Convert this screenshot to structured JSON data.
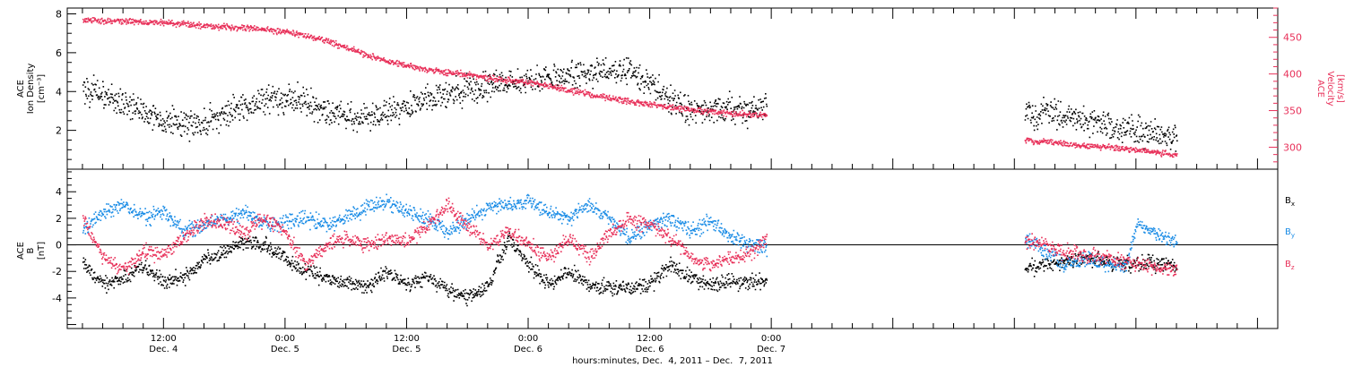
{
  "chart_data": [
    {
      "type": "scatter",
      "panel": "top",
      "ylabel_left": [
        "ACE",
        "Ion Density",
        "[cm⁻³]"
      ],
      "ylabel_right": [
        "ACE",
        "Velocity",
        "[km/s]"
      ],
      "ylim_left": [
        0,
        8.3
      ],
      "yticks_left": [
        2,
        4,
        6,
        8
      ],
      "ylim_right": [
        270,
        490
      ],
      "yticks_right": [
        300,
        350,
        400,
        450
      ],
      "grid": false,
      "series": [
        {
          "color": "#000000",
          "axis": "left",
          "segments": [
            {
              "x": [
                -8,
                -5,
                -3,
                0,
                2,
                4,
                6,
                8,
                10,
                12,
                14,
                16,
                18,
                20,
                22,
                24,
                26,
                28,
                30,
                32,
                34,
                36,
                38,
                40,
                42,
                44,
                46,
                48,
                50,
                52,
                54,
                56,
                58,
                59.5
              ],
              "y": [
                4.2,
                3.6,
                3.2,
                2.5,
                2.3,
                2.4,
                2.8,
                3.3,
                3.6,
                3.7,
                3.5,
                3.0,
                2.8,
                2.6,
                2.9,
                3.3,
                3.6,
                3.9,
                4.1,
                4.3,
                4.5,
                4.6,
                4.7,
                4.8,
                4.9,
                5.1,
                5.0,
                4.4,
                3.6,
                3.1,
                3.0,
                3.1,
                3.0,
                3.2
              ]
            },
            {
              "x": [
                85,
                88,
                90,
                92,
                94,
                96,
                98,
                100
              ],
              "y": [
                2.8,
                2.9,
                2.6,
                2.4,
                2.2,
                2.0,
                1.9,
                1.7
              ]
            }
          ]
        },
        {
          "color": "#e8315a",
          "axis": "right",
          "segments": [
            {
              "x": [
                -8,
                -4,
                0,
                4,
                8,
                12,
                14,
                16,
                18,
                20,
                22,
                24,
                26,
                28,
                30,
                32,
                34,
                36,
                38,
                40,
                42,
                44,
                46,
                48,
                50,
                52,
                54,
                56,
                58,
                59.5
              ],
              "y": [
                473,
                472,
                470,
                466,
                463,
                458,
                452,
                445,
                436,
                426,
                417,
                411,
                406,
                402,
                399,
                394,
                391,
                388,
                384,
                378,
                372,
                367,
                362,
                358,
                355,
                351,
                348,
                346,
                344,
                343
              ]
            },
            {
              "x": [
                85,
                88,
                90,
                92,
                94,
                96,
                98,
                100
              ],
              "y": [
                310,
                306,
                303,
                301,
                299,
                296,
                293,
                289
              ]
            }
          ]
        }
      ]
    },
    {
      "type": "scatter",
      "panel": "bottom",
      "ylabel": [
        "ACE",
        "B",
        "[nT]"
      ],
      "ylim": [
        -6.3,
        5.7
      ],
      "yticks": [
        -4,
        -2,
        0,
        2,
        4
      ],
      "zero_line": true,
      "grid": false,
      "legend": [
        {
          "label": "B",
          "sub": "x",
          "color": "#000000"
        },
        {
          "label": "B",
          "sub": "y",
          "color": "#1a8ce6"
        },
        {
          "label": "B",
          "sub": "z",
          "color": "#e8315a"
        }
      ],
      "series": [
        {
          "color": "#000000",
          "segments": [
            {
              "x": [
                -8,
                -6,
                -4,
                -2,
                0,
                2,
                4,
                6,
                8,
                10,
                12,
                14,
                16,
                18,
                20,
                22,
                24,
                26,
                28,
                30,
                32,
                34,
                36,
                38,
                40,
                42,
                44,
                46,
                48,
                50,
                52,
                54,
                56,
                58,
                59.5
              ],
              "y": [
                -1.5,
                -3.0,
                -2.5,
                -1.5,
                -2.8,
                -2.5,
                -1.2,
                -0.5,
                0.3,
                0.0,
                -1.0,
                -2.0,
                -2.5,
                -2.8,
                -3.2,
                -2.0,
                -3.0,
                -2.5,
                -3.5,
                -4.0,
                -3.0,
                0.5,
                -1.5,
                -3.0,
                -2.0,
                -3.0,
                -3.2,
                -3.3,
                -3.0,
                -1.5,
                -2.5,
                -3.0,
                -2.8,
                -2.7,
                -2.9
              ]
            },
            {
              "x": [
                85,
                87,
                89,
                91,
                93,
                95,
                97,
                100
              ],
              "y": [
                -1.8,
                -1.5,
                -1.2,
                -1.0,
                -1.3,
                -1.5,
                -1.4,
                -1.6
              ]
            }
          ]
        },
        {
          "color": "#1a8ce6",
          "segments": [
            {
              "x": [
                -8,
                -6,
                -4,
                -2,
                0,
                2,
                4,
                6,
                8,
                10,
                12,
                14,
                16,
                18,
                20,
                22,
                24,
                26,
                28,
                30,
                32,
                34,
                36,
                38,
                40,
                42,
                44,
                46,
                48,
                50,
                52,
                54,
                56,
                58,
                59.5
              ],
              "y": [
                1.0,
                2.5,
                3.0,
                2.0,
                2.5,
                1.0,
                1.5,
                2.0,
                2.5,
                1.5,
                1.8,
                2.0,
                1.5,
                2.0,
                2.8,
                3.2,
                2.5,
                2.0,
                1.0,
                2.0,
                2.8,
                3.0,
                3.3,
                2.5,
                2.0,
                3.0,
                2.0,
                0.5,
                1.5,
                2.0,
                1.0,
                1.8,
                0.5,
                0.0,
                -0.3
              ]
            },
            {
              "x": [
                85,
                87,
                89,
                91,
                93,
                95,
                96,
                98,
                100
              ],
              "y": [
                0.5,
                -0.5,
                -1.5,
                -1.0,
                -1.5,
                -1.6,
                1.5,
                0.8,
                0.2
              ]
            }
          ]
        },
        {
          "color": "#e8315a",
          "segments": [
            {
              "x": [
                -8,
                -6,
                -4,
                -2,
                0,
                2,
                4,
                6,
                8,
                10,
                12,
                14,
                16,
                18,
                20,
                22,
                24,
                26,
                28,
                30,
                32,
                34,
                36,
                38,
                40,
                42,
                44,
                46,
                48,
                50,
                52,
                54,
                56,
                58,
                59.5
              ],
              "y": [
                2.0,
                -1.0,
                -2.0,
                -0.5,
                -0.8,
                0.5,
                1.8,
                1.5,
                1.0,
                2.0,
                1.0,
                -1.5,
                0.0,
                0.5,
                0.0,
                0.5,
                0.2,
                1.5,
                3.0,
                1.5,
                0.0,
                1.0,
                0.0,
                -1.0,
                0.5,
                -1.0,
                1.0,
                1.8,
                1.5,
                0.5,
                -1.0,
                -1.5,
                -1.0,
                -0.5,
                0.5
              ]
            },
            {
              "x": [
                85,
                87,
                89,
                91,
                93,
                95,
                97,
                100
              ],
              "y": [
                0.2,
                0.0,
                -0.5,
                -0.8,
                -1.0,
                -1.3,
                -1.6,
                -2.0
              ]
            }
          ]
        }
      ]
    }
  ],
  "x_axis": {
    "xlim": [
      -9.5,
      110
    ],
    "ticks": [
      {
        "x": 0,
        "time": "12:00",
        "date": "Dec. 4"
      },
      {
        "x": 12,
        "time": "0:00",
        "date": "Dec. 5"
      },
      {
        "x": 24,
        "time": "12:00",
        "date": "Dec. 5"
      },
      {
        "x": 36,
        "time": "0:00",
        "date": "Dec. 6"
      },
      {
        "x": 48,
        "time": "12:00",
        "date": "Dec. 6"
      },
      {
        "x": 60,
        "time": "0:00",
        "date": "Dec. 7"
      }
    ],
    "tick_unit_hours": 12,
    "title": "hours:minutes, Dec.  4, 2011 – Dec.  7, 2011"
  }
}
